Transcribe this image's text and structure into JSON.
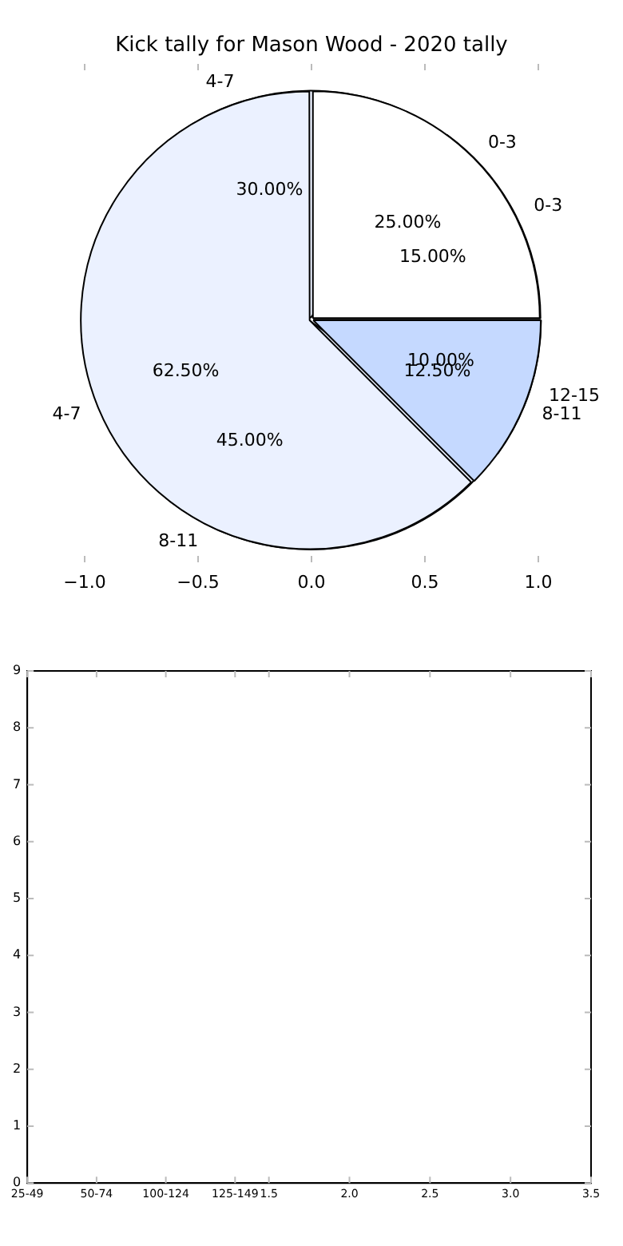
{
  "chart_data": [
    {
      "type": "pie",
      "title": "Kick tally for Mason Wood - 2020 tally",
      "categories": [
        "0-3",
        "4-7",
        "8-11",
        "12-15"
      ],
      "values": [
        15,
        30,
        45,
        10
      ],
      "value_labels": [
        "15.00%",
        "30.00%",
        "45.00%",
        "10.00%"
      ],
      "colors": [
        "#ffffff",
        "#ebf1ff",
        "#ebf1ff",
        "#c5d9ff"
      ],
      "annotations": [
        "−1.0",
        "−0.5",
        "0.0",
        "0.5",
        "1.0"
      ],
      "legend": false
    },
    {
      "type": "pie",
      "categories": [
        "0-3",
        "4-7",
        "8-11"
      ],
      "values": [
        25,
        62.5,
        12.5
      ],
      "value_labels": [
        "25.00%",
        "62.50%",
        "12.50%"
      ],
      "colors": [
        "#ffffff",
        "#ebf1ff",
        "#c5d9ff"
      ],
      "legend": false
    },
    {
      "type": "scatter",
      "xlim": [
        0,
        3.5
      ],
      "ylim": [
        0,
        9
      ],
      "xticks": [
        {
          "value": 0,
          "label": "25-49"
        },
        {
          "value": 0.43,
          "label": "50-74"
        },
        {
          "value": 0.86,
          "label": "100-124"
        },
        {
          "value": 1.29,
          "label": "125-149"
        },
        {
          "value": 1.5,
          "label": "1.5"
        },
        {
          "value": 2,
          "label": "2.0"
        },
        {
          "value": 2.5,
          "label": "2.5"
        },
        {
          "value": 3,
          "label": "3.0"
        },
        {
          "value": 3.5,
          "label": "3.5"
        }
      ],
      "yticks": [
        0,
        1,
        2,
        3,
        4,
        5,
        6,
        7,
        8,
        9
      ],
      "grid": false,
      "legend": false
    }
  ]
}
